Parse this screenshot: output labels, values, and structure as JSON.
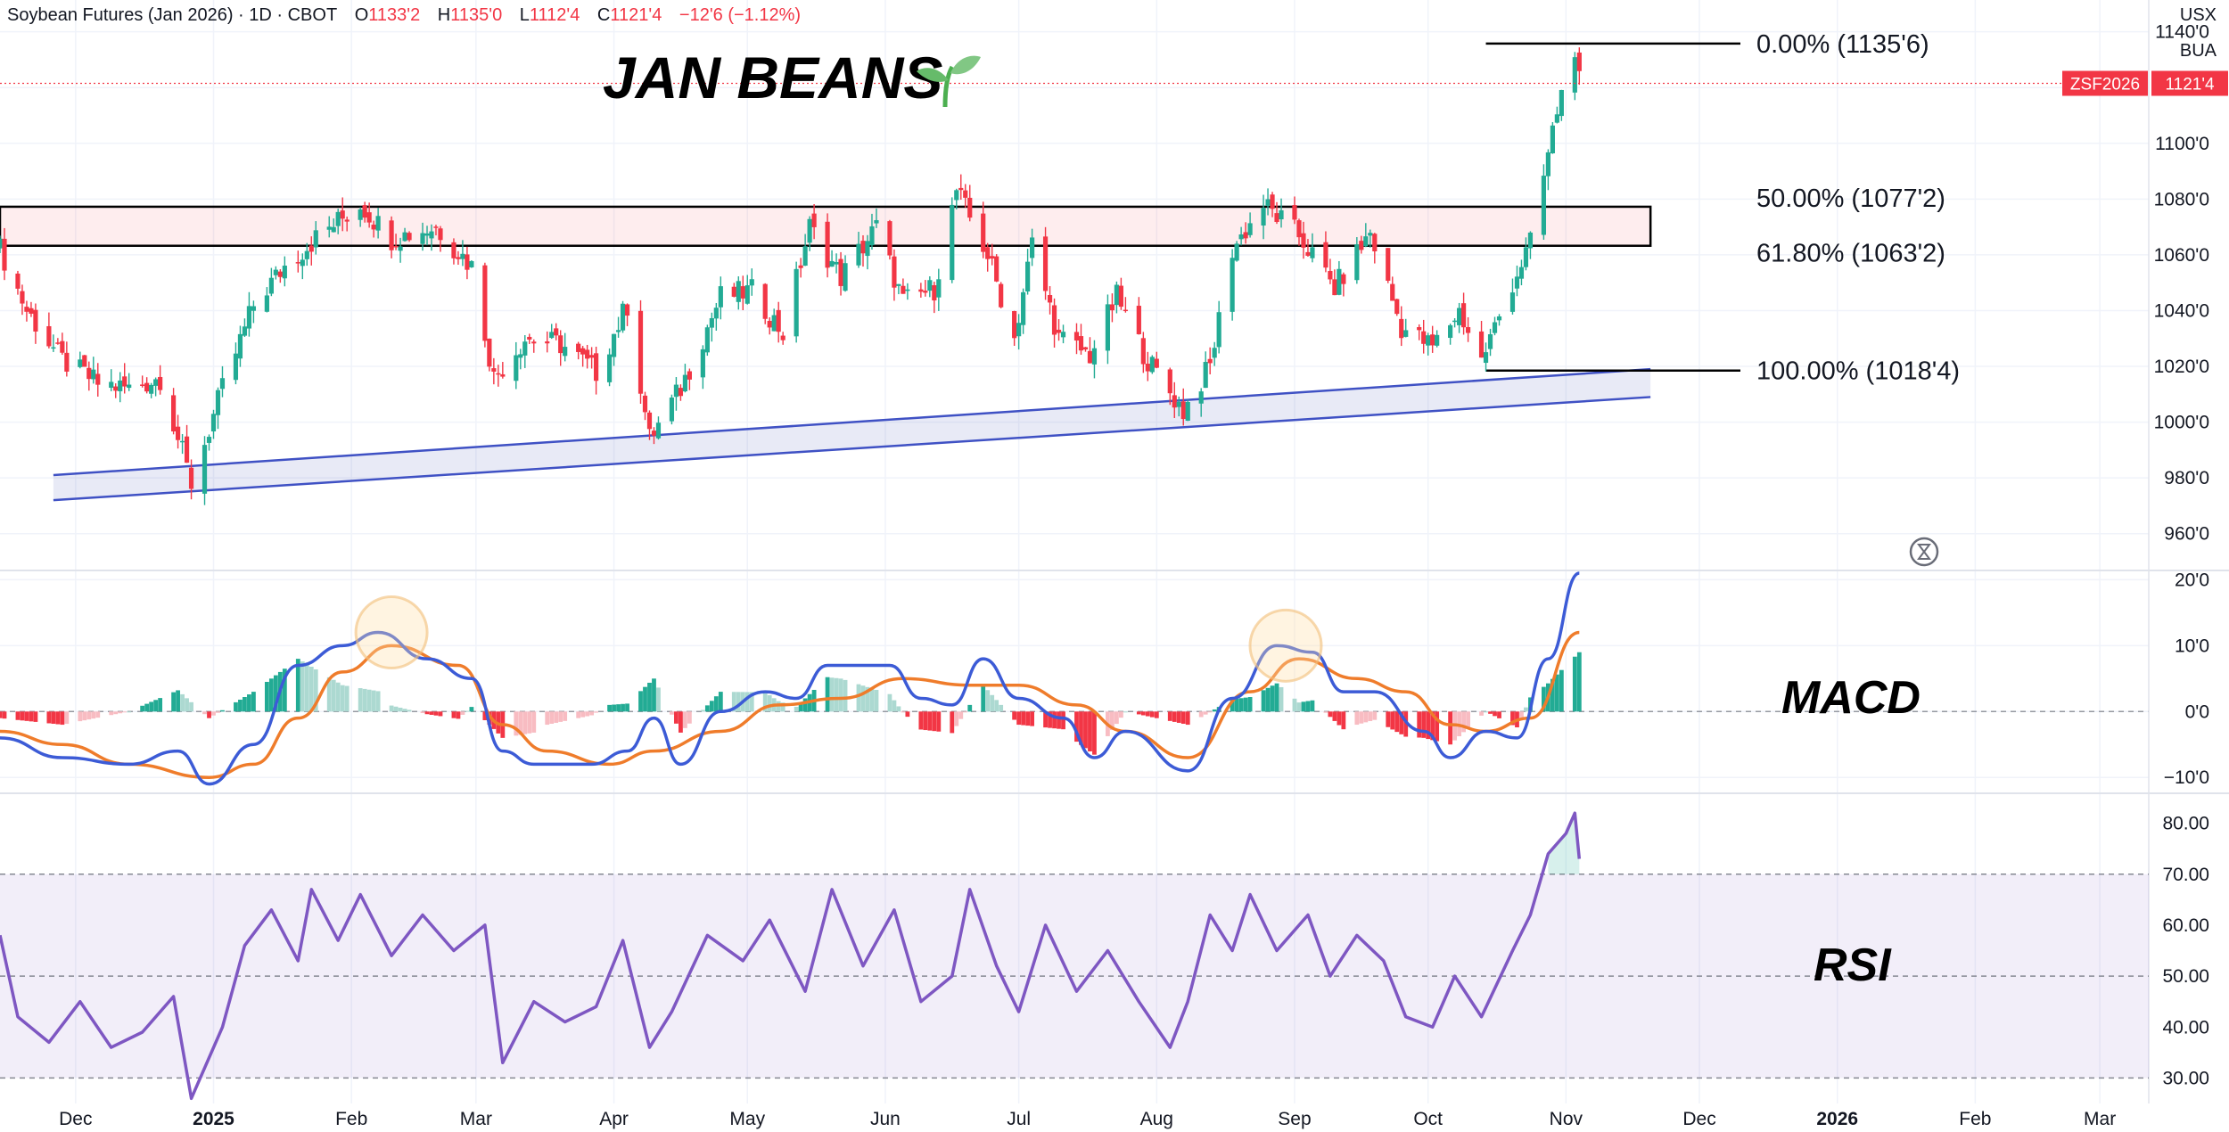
{
  "header": {
    "symbol": "Soybean Futures (Jan 2026) · 1D · CBOT",
    "open_label": "O",
    "open": "1133'2",
    "high_label": "H",
    "high": "1135'0",
    "low_label": "L",
    "low": "1112'4",
    "close_label": "C",
    "close": "1121'4",
    "change": "−12'6 (−1.12%)"
  },
  "units": {
    "currency": "USX",
    "unit": "BUA"
  },
  "annotations": {
    "title": "JAN BEANS",
    "title_icon": "seedling-icon",
    "macd_label": "MACD",
    "rsi_label": "RSI",
    "price_tag": {
      "symbol": "ZSF2026",
      "value": "1121'4",
      "price": 1121.5,
      "color": "#f23645"
    }
  },
  "chart_data": [
    {
      "type": "candlestick",
      "pane": "price",
      "ylim": [
        950,
        1145
      ],
      "y_ticks": [
        960,
        980,
        1000,
        1020,
        1040,
        1060,
        1080,
        1100,
        1120,
        1140
      ],
      "y_tick_labels": [
        "960'0",
        "980'0",
        "1000'0",
        "1020'0",
        "1040'0",
        "1060'0",
        "1080'0",
        "1100'0",
        "1120'0",
        "1140'0"
      ],
      "x_ticks": [
        {
          "label": "Dec",
          "date": "2024-12-01",
          "bold": false
        },
        {
          "label": "2025",
          "date": "2025-01-01",
          "bold": true
        },
        {
          "label": "Feb",
          "date": "2025-02-01",
          "bold": false
        },
        {
          "label": "Mar",
          "date": "2025-03-01",
          "bold": false
        },
        {
          "label": "Apr",
          "date": "2025-04-01",
          "bold": false
        },
        {
          "label": "May",
          "date": "2025-05-01",
          "bold": false
        },
        {
          "label": "Jun",
          "date": "2025-06-01",
          "bold": false
        },
        {
          "label": "Jul",
          "date": "2025-07-01",
          "bold": false
        },
        {
          "label": "Aug",
          "date": "2025-08-01",
          "bold": false
        },
        {
          "label": "Sep",
          "date": "2025-09-01",
          "bold": false
        },
        {
          "label": "Oct",
          "date": "2025-10-01",
          "bold": false
        },
        {
          "label": "Nov",
          "date": "2025-11-01",
          "bold": false
        },
        {
          "label": "Dec",
          "date": "2025-12-01",
          "bold": false
        },
        {
          "label": "2026",
          "date": "2026-01-01",
          "bold": true
        },
        {
          "label": "Feb",
          "date": "2026-02-01",
          "bold": false
        },
        {
          "label": "Mar",
          "date": "2026-03-01",
          "bold": false
        }
      ],
      "xlim": [
        "2024-11-14",
        "2026-03-12"
      ],
      "up_color": "#22ab94",
      "down_color": "#f23645",
      "close_path": [
        [
          "2024-11-14",
          1062
        ],
        [
          "2024-11-20",
          1040
        ],
        [
          "2024-11-28",
          1022
        ],
        [
          "2024-12-06",
          1014
        ],
        [
          "2024-12-13",
          1012
        ],
        [
          "2024-12-20",
          1016
        ],
        [
          "2024-12-27",
          978
        ],
        [
          "2025-01-03",
          1012
        ],
        [
          "2025-01-10",
          1042
        ],
        [
          "2025-01-17",
          1056
        ],
        [
          "2025-01-24",
          1066
        ],
        [
          "2025-02-03",
          1078
        ],
        [
          "2025-02-10",
          1066
        ],
        [
          "2025-02-20",
          1070
        ],
        [
          "2025-02-28",
          1056
        ],
        [
          "2025-03-05",
          1016
        ],
        [
          "2025-03-12",
          1030
        ],
        [
          "2025-03-20",
          1028
        ],
        [
          "2025-03-28",
          1018
        ],
        [
          "2025-04-04",
          1042
        ],
        [
          "2025-04-09",
          994
        ],
        [
          "2025-04-16",
          1012
        ],
        [
          "2025-04-25",
          1045
        ],
        [
          "2025-05-02",
          1047
        ],
        [
          "2025-05-09",
          1032
        ],
        [
          "2025-05-15",
          1070
        ],
        [
          "2025-05-22",
          1052
        ],
        [
          "2025-05-30",
          1070
        ],
        [
          "2025-06-05",
          1043
        ],
        [
          "2025-06-12",
          1048
        ],
        [
          "2025-06-17",
          1083
        ],
        [
          "2025-06-24",
          1060
        ],
        [
          "2025-06-30",
          1030
        ],
        [
          "2025-07-04",
          1064
        ],
        [
          "2025-07-10",
          1030
        ],
        [
          "2025-07-17",
          1024
        ],
        [
          "2025-07-23",
          1045
        ],
        [
          "2025-07-30",
          1022
        ],
        [
          "2025-08-07",
          1004
        ],
        [
          "2025-08-13",
          1020
        ],
        [
          "2025-08-18",
          1062
        ],
        [
          "2025-08-25",
          1078
        ],
        [
          "2025-09-02",
          1067
        ],
        [
          "2025-09-10",
          1048
        ],
        [
          "2025-09-18",
          1068
        ],
        [
          "2025-09-25",
          1034
        ],
        [
          "2025-10-02",
          1027
        ],
        [
          "2025-10-08",
          1040
        ],
        [
          "2025-10-13",
          1022
        ],
        [
          "2025-10-20",
          1050
        ],
        [
          "2025-10-24",
          1064
        ],
        [
          "2025-10-27",
          1088
        ],
        [
          "2025-10-30",
          1112
        ],
        [
          "2025-11-03",
          1135
        ],
        [
          "2025-11-04",
          1121.5
        ]
      ],
      "fibonacci": [
        {
          "label": "0.00% (1135'6)",
          "price": 1135.75
        },
        {
          "label": "50.00% (1077'2)",
          "price": 1077.25
        },
        {
          "label": "61.80% (1063'2)",
          "price": 1063.25
        },
        {
          "label": "100.00% (1018'4)",
          "price": 1018.5
        }
      ],
      "resistance_zone": {
        "from": 1063.25,
        "to": 1077.25,
        "start": "2024-11-14",
        "end": "2025-11-20"
      },
      "trend_channel": {
        "upper_start": [
          "2024-11-26",
          981
        ],
        "upper_end": [
          "2025-11-20",
          1019
        ],
        "lower_start": [
          "2024-11-26",
          972
        ],
        "lower_end": [
          "2025-11-20",
          1009
        ]
      }
    },
    {
      "type": "line",
      "pane": "macd",
      "ylim": [
        -12,
        21
      ],
      "y_ticks": [
        -10,
        0,
        10,
        20
      ],
      "y_tick_labels": [
        "−10'0",
        "0'0",
        "10'0",
        "20'0"
      ],
      "series": [
        {
          "color": "#3c5bd6",
          "values": [
            [
              "2024-11-14",
              -4
            ],
            [
              "2024-11-28",
              -7
            ],
            [
              "2024-12-13",
              -8
            ],
            [
              "2024-12-24",
              -6
            ],
            [
              "2024-12-31",
              -11
            ],
            [
              "2025-01-10",
              -5
            ],
            [
              "2025-01-20",
              7
            ],
            [
              "2025-01-30",
              10
            ],
            [
              "2025-02-07",
              12
            ],
            [
              "2025-02-18",
              8
            ],
            [
              "2025-02-28",
              5
            ],
            [
              "2025-03-07",
              -6
            ],
            [
              "2025-03-14",
              -8
            ],
            [
              "2025-03-27",
              -8
            ],
            [
              "2025-04-04",
              -6
            ],
            [
              "2025-04-10",
              -1
            ],
            [
              "2025-04-16",
              -8
            ],
            [
              "2025-04-25",
              0
            ],
            [
              "2025-05-05",
              3
            ],
            [
              "2025-05-12",
              2
            ],
            [
              "2025-05-19",
              7
            ],
            [
              "2025-06-02",
              7
            ],
            [
              "2025-06-09",
              2
            ],
            [
              "2025-06-16",
              1
            ],
            [
              "2025-06-23",
              8
            ],
            [
              "2025-07-01",
              2
            ],
            [
              "2025-07-11",
              -1
            ],
            [
              "2025-07-18",
              -7
            ],
            [
              "2025-07-25",
              -3
            ],
            [
              "2025-08-08",
              -9
            ],
            [
              "2025-08-18",
              2
            ],
            [
              "2025-08-28",
              10
            ],
            [
              "2025-09-05",
              9
            ],
            [
              "2025-09-12",
              3
            ],
            [
              "2025-09-19",
              3
            ],
            [
              "2025-09-30",
              -3
            ],
            [
              "2025-10-06",
              -7
            ],
            [
              "2025-10-14",
              -3
            ],
            [
              "2025-10-21",
              -4
            ],
            [
              "2025-10-28",
              8
            ],
            [
              "2025-11-04",
              21
            ]
          ]
        },
        {
          "color": "#ef7c2b",
          "values": [
            [
              "2024-11-14",
              -3
            ],
            [
              "2024-11-28",
              -5
            ],
            [
              "2024-12-13",
              -8
            ],
            [
              "2024-12-31",
              -10
            ],
            [
              "2025-01-10",
              -8
            ],
            [
              "2025-01-20",
              -1
            ],
            [
              "2025-01-30",
              6
            ],
            [
              "2025-02-10",
              10
            ],
            [
              "2025-02-25",
              7
            ],
            [
              "2025-03-07",
              -2
            ],
            [
              "2025-03-17",
              -6
            ],
            [
              "2025-03-31",
              -8
            ],
            [
              "2025-04-10",
              -6
            ],
            [
              "2025-04-25",
              -3
            ],
            [
              "2025-05-08",
              1
            ],
            [
              "2025-05-22",
              2
            ],
            [
              "2025-06-05",
              5
            ],
            [
              "2025-06-20",
              4
            ],
            [
              "2025-07-01",
              4
            ],
            [
              "2025-07-14",
              1
            ],
            [
              "2025-07-25",
              -3
            ],
            [
              "2025-08-08",
              -7
            ],
            [
              "2025-08-22",
              3
            ],
            [
              "2025-09-02",
              8
            ],
            [
              "2025-09-15",
              5
            ],
            [
              "2025-09-26",
              3
            ],
            [
              "2025-10-06",
              -2
            ],
            [
              "2025-10-14",
              -3
            ],
            [
              "2025-10-24",
              -1
            ],
            [
              "2025-11-04",
              12
            ]
          ]
        }
      ],
      "histogram_up_color": "#22ab94",
      "histogram_down_color": "#f23645",
      "highlights": [
        {
          "date": "2025-02-10",
          "value": 7
        },
        {
          "date": "2025-08-30",
          "value": 5
        }
      ]
    },
    {
      "type": "line",
      "pane": "rsi",
      "ylim": [
        25,
        85
      ],
      "y_ticks": [
        30,
        40,
        50,
        60,
        70,
        80
      ],
      "y_tick_labels": [
        "30.00",
        "40.00",
        "50.00",
        "60.00",
        "70.00",
        "80.00"
      ],
      "band": [
        30,
        70
      ],
      "series": [
        {
          "color": "#7e57c2",
          "values": [
            [
              "2024-11-14",
              58
            ],
            [
              "2024-11-18",
              42
            ],
            [
              "2024-11-25",
              37
            ],
            [
              "2024-12-02",
              45
            ],
            [
              "2024-12-09",
              36
            ],
            [
              "2024-12-16",
              39
            ],
            [
              "2024-12-23",
              46
            ],
            [
              "2024-12-27",
              26
            ],
            [
              "2025-01-03",
              40
            ],
            [
              "2025-01-08",
              56
            ],
            [
              "2025-01-14",
              63
            ],
            [
              "2025-01-20",
              53
            ],
            [
              "2025-01-23",
              67
            ],
            [
              "2025-01-29",
              57
            ],
            [
              "2025-02-03",
              66
            ],
            [
              "2025-02-10",
              54
            ],
            [
              "2025-02-17",
              62
            ],
            [
              "2025-02-24",
              55
            ],
            [
              "2025-03-03",
              60
            ],
            [
              "2025-03-07",
              33
            ],
            [
              "2025-03-14",
              45
            ],
            [
              "2025-03-21",
              41
            ],
            [
              "2025-03-28",
              44
            ],
            [
              "2025-04-03",
              57
            ],
            [
              "2025-04-09",
              36
            ],
            [
              "2025-04-14",
              43
            ],
            [
              "2025-04-22",
              58
            ],
            [
              "2025-04-30",
              53
            ],
            [
              "2025-05-06",
              61
            ],
            [
              "2025-05-14",
              47
            ],
            [
              "2025-05-20",
              67
            ],
            [
              "2025-05-27",
              52
            ],
            [
              "2025-06-03",
              63
            ],
            [
              "2025-06-09",
              45
            ],
            [
              "2025-06-16",
              50
            ],
            [
              "2025-06-20",
              67
            ],
            [
              "2025-06-26",
              52
            ],
            [
              "2025-07-01",
              43
            ],
            [
              "2025-07-07",
              60
            ],
            [
              "2025-07-14",
              47
            ],
            [
              "2025-07-21",
              55
            ],
            [
              "2025-07-28",
              45
            ],
            [
              "2025-08-04",
              36
            ],
            [
              "2025-08-08",
              45
            ],
            [
              "2025-08-13",
              62
            ],
            [
              "2025-08-18",
              55
            ],
            [
              "2025-08-22",
              66
            ],
            [
              "2025-08-28",
              55
            ],
            [
              "2025-09-04",
              62
            ],
            [
              "2025-09-09",
              50
            ],
            [
              "2025-09-15",
              58
            ],
            [
              "2025-09-21",
              53
            ],
            [
              "2025-09-26",
              42
            ],
            [
              "2025-10-02",
              40
            ],
            [
              "2025-10-07",
              50
            ],
            [
              "2025-10-13",
              42
            ],
            [
              "2025-10-20",
              55
            ],
            [
              "2025-10-24",
              62
            ],
            [
              "2025-10-28",
              74
            ],
            [
              "2025-11-01",
              78
            ],
            [
              "2025-11-03",
              82
            ],
            [
              "2025-11-04",
              73
            ]
          ]
        }
      ]
    }
  ]
}
